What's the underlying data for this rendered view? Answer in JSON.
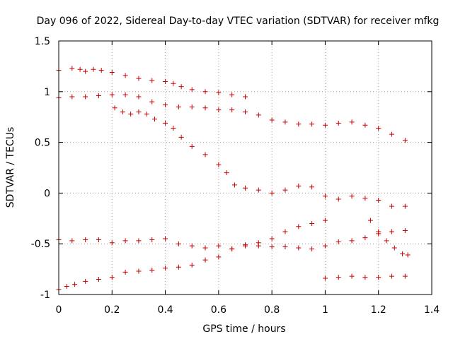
{
  "chart_data": {
    "type": "scatter",
    "title": "Day 096 of 2022, Sidereal Day-to-day VTEC variation (SDTVAR) for receiver mfkg",
    "xlabel": "GPS time / hours",
    "ylabel": "SDTVAR / TECUs",
    "xlim": [
      0,
      1.4
    ],
    "ylim": [
      -1,
      1.5
    ],
    "x_ticks": [
      0,
      0.2,
      0.4,
      0.6,
      0.8,
      1,
      1.2,
      1.4
    ],
    "x_tick_labels": [
      "0",
      "0.2",
      "0.4",
      "0.6",
      "0.8",
      "1",
      "1.2",
      "1.4"
    ],
    "y_ticks": [
      -1,
      -0.5,
      0,
      0.5,
      1,
      1.5
    ],
    "y_tick_labels": [
      "-1",
      "-0.5",
      "0",
      "0.5",
      "1",
      "1.5"
    ],
    "grid": true,
    "marker": "+",
    "marker_color": "#cc0000",
    "series": [
      {
        "name": "series-1",
        "x": [
          0.0,
          0.05,
          0.08,
          0.1,
          0.13,
          0.16,
          0.2,
          0.25,
          0.3,
          0.35,
          0.4,
          0.43,
          0.46,
          0.5,
          0.55,
          0.6,
          0.65,
          0.7
        ],
        "y": [
          1.21,
          1.23,
          1.22,
          1.2,
          1.22,
          1.21,
          1.19,
          1.16,
          1.13,
          1.11,
          1.1,
          1.08,
          1.05,
          1.02,
          1.0,
          0.99,
          0.97,
          0.95
        ]
      },
      {
        "name": "series-2",
        "x": [
          0.0,
          0.05,
          0.1,
          0.15,
          0.2,
          0.25,
          0.3,
          0.35,
          0.4,
          0.45,
          0.5,
          0.55,
          0.6,
          0.65,
          0.7,
          0.75,
          0.8,
          0.85,
          0.9,
          0.95,
          1.0,
          1.05,
          1.1,
          1.15,
          1.2,
          1.25,
          1.3
        ],
        "y": [
          0.94,
          0.95,
          0.95,
          0.96,
          0.97,
          0.97,
          0.95,
          0.9,
          0.87,
          0.85,
          0.85,
          0.84,
          0.82,
          0.82,
          0.8,
          0.77,
          0.72,
          0.7,
          0.68,
          0.68,
          0.67,
          0.69,
          0.7,
          0.67,
          0.64,
          0.58,
          0.52
        ]
      },
      {
        "name": "series-3",
        "x": [
          0.21,
          0.24,
          0.27,
          0.3,
          0.33,
          0.36,
          0.4,
          0.43,
          0.46,
          0.5,
          0.55,
          0.6,
          0.63,
          0.66,
          0.7,
          0.75,
          0.8,
          0.85,
          0.9,
          0.95,
          1.0,
          1.05,
          1.1,
          1.15,
          1.2,
          1.25,
          1.3
        ],
        "y": [
          0.84,
          0.8,
          0.78,
          0.8,
          0.78,
          0.73,
          0.69,
          0.64,
          0.55,
          0.46,
          0.38,
          0.28,
          0.2,
          0.08,
          0.05,
          0.03,
          0.0,
          0.03,
          0.07,
          0.06,
          -0.03,
          -0.06,
          -0.03,
          -0.05,
          -0.07,
          -0.13,
          -0.13
        ]
      },
      {
        "name": "series-4",
        "x": [
          0.0,
          0.05,
          0.1,
          0.15,
          0.2,
          0.25,
          0.3,
          0.35,
          0.4,
          0.45,
          0.5,
          0.55,
          0.6,
          0.65,
          0.7,
          0.75,
          0.8,
          0.85,
          0.9,
          0.95,
          1.0,
          1.05,
          1.1,
          1.15,
          1.2,
          1.25,
          1.3
        ],
        "y": [
          -0.46,
          -0.47,
          -0.46,
          -0.46,
          -0.49,
          -0.47,
          -0.47,
          -0.46,
          -0.45,
          -0.5,
          -0.52,
          -0.54,
          -0.52,
          -0.55,
          -0.52,
          -0.52,
          -0.53,
          -0.53,
          -0.54,
          -0.55,
          -0.52,
          -0.48,
          -0.47,
          -0.44,
          -0.4,
          -0.38,
          -0.37
        ]
      },
      {
        "name": "series-5",
        "x": [
          0.0,
          0.03,
          0.06,
          0.1,
          0.15,
          0.2,
          0.25,
          0.3,
          0.35,
          0.4,
          0.45,
          0.5,
          0.55,
          0.6,
          0.65,
          0.7,
          0.75,
          0.8,
          0.85,
          0.9,
          0.95,
          1.0
        ],
        "y": [
          -0.95,
          -0.92,
          -0.9,
          -0.87,
          -0.85,
          -0.83,
          -0.78,
          -0.77,
          -0.76,
          -0.74,
          -0.73,
          -0.71,
          -0.66,
          -0.63,
          -0.55,
          -0.51,
          -0.49,
          -0.45,
          -0.38,
          -0.33,
          -0.3,
          -0.27
        ]
      },
      {
        "name": "series-6",
        "x": [
          1.0,
          1.05,
          1.1,
          1.15,
          1.2,
          1.25,
          1.3
        ],
        "y": [
          -0.84,
          -0.83,
          -0.82,
          -0.83,
          -0.83,
          -0.82,
          -0.82
        ]
      },
      {
        "name": "series-7",
        "x": [
          1.17,
          1.2,
          1.23,
          1.26,
          1.29,
          1.31
        ],
        "y": [
          -0.27,
          -0.38,
          -0.47,
          -0.54,
          -0.6,
          -0.61
        ]
      }
    ]
  }
}
